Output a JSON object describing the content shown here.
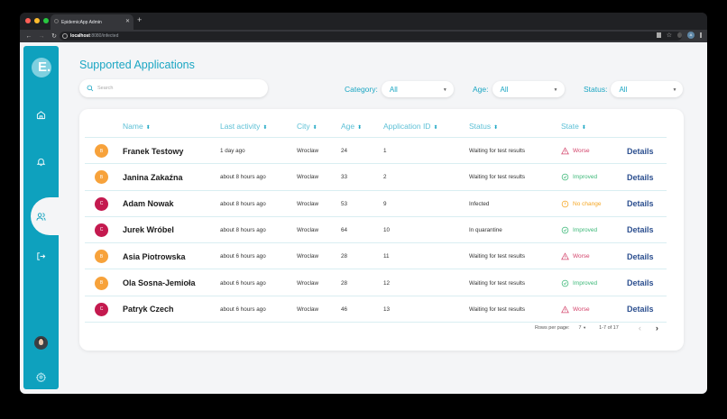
{
  "browser": {
    "tab_title": "EpidemicApp Admin",
    "url_host": "localhost",
    "url_rest": ":8080/infected",
    "profile_initial": "A"
  },
  "sidebar": {
    "logo_text": "E.",
    "items": [
      {
        "name": "home",
        "icon": "home-icon"
      },
      {
        "name": "notifications",
        "icon": "bell-icon"
      },
      {
        "name": "users",
        "icon": "users-icon",
        "active": true
      },
      {
        "name": "logout",
        "icon": "logout-icon"
      }
    ],
    "settings_icon": "gear-icon"
  },
  "header": {
    "title": "Supported Applications",
    "search_placeholder": "Search"
  },
  "filters": {
    "category": {
      "label": "Category:",
      "value": "All"
    },
    "age": {
      "label": "Age:",
      "value": "All"
    },
    "status": {
      "label": "Status:",
      "value": "All"
    }
  },
  "colors": {
    "accent": "#1ba6c3",
    "sidebar": "#0ea1be",
    "badge_b": "#f7a23b",
    "badge_c": "#c41a4f",
    "worse": "#d3446b",
    "improved": "#3cb878",
    "no_change": "#f5a623",
    "details": "#2c4f8f"
  },
  "table": {
    "columns": [
      "Name",
      "Last activity",
      "City",
      "Age",
      "Application ID",
      "Status",
      "State"
    ],
    "rows": [
      {
        "badge": "B",
        "name": "Franek Testowy",
        "last_activity": "1 day ago",
        "city": "Wroclaw",
        "age": "24",
        "app_id": "1",
        "status": "Waiting for test results",
        "state": "Worse",
        "action": "Details"
      },
      {
        "badge": "B",
        "name": "Janina Zakaźna",
        "last_activity": "about 8 hours ago",
        "city": "Wroclaw",
        "age": "33",
        "app_id": "2",
        "status": "Waiting for test results",
        "state": "Improved",
        "action": "Details"
      },
      {
        "badge": "C",
        "name": "Adam Nowak",
        "last_activity": "about 8 hours ago",
        "city": "Wroclaw",
        "age": "53",
        "app_id": "9",
        "status": "Infected",
        "state": "No change",
        "action": "Details"
      },
      {
        "badge": "C",
        "name": "Jurek Wróbel",
        "last_activity": "about 8 hours ago",
        "city": "Wroclaw",
        "age": "64",
        "app_id": "10",
        "status": "In quarantine",
        "state": "Improved",
        "action": "Details"
      },
      {
        "badge": "B",
        "name": "Asia Piotrowska",
        "last_activity": "about 6 hours ago",
        "city": "Wroclaw",
        "age": "28",
        "app_id": "11",
        "status": "Waiting for test results",
        "state": "Worse",
        "action": "Details"
      },
      {
        "badge": "B",
        "name": "Ola Sosna-Jemioła",
        "last_activity": "about 6 hours ago",
        "city": "Wroclaw",
        "age": "28",
        "app_id": "12",
        "status": "Waiting for test results",
        "state": "Improved",
        "action": "Details"
      },
      {
        "badge": "C",
        "name": "Patryk Czech",
        "last_activity": "about 6 hours ago",
        "city": "Wroclaw",
        "age": "46",
        "app_id": "13",
        "status": "Waiting for test results",
        "state": "Worse",
        "action": "Details"
      }
    ]
  },
  "pagination": {
    "rows_per_page_label": "Rows per page:",
    "rows_per_page": "7",
    "range": "1-7 of 17",
    "prev": "‹",
    "next": "›"
  }
}
